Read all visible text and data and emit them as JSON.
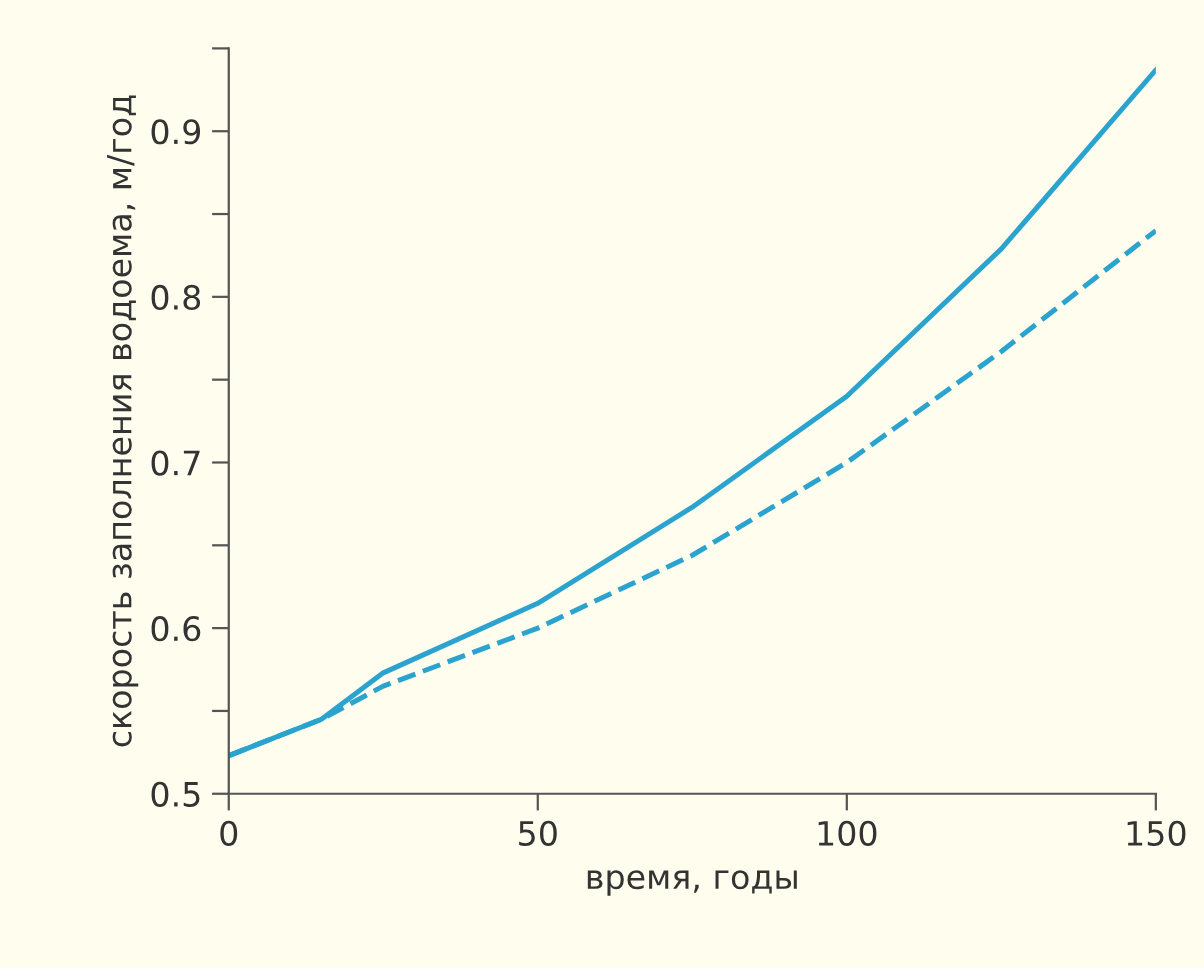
{
  "chart_data": {
    "type": "line",
    "xlabel": "время, годы",
    "ylabel": "скорость заполнения водоема, м/год",
    "xlim": [
      0,
      150
    ],
    "ylim": [
      0.5,
      0.95
    ],
    "xticks": [
      0,
      50,
      100,
      150
    ],
    "yticks": [
      0.5,
      {
        "value": 0.55,
        "label": null
      },
      0.6,
      {
        "value": 0.65,
        "label": null
      },
      0.7,
      {
        "value": 0.75,
        "label": null
      },
      0.8,
      {
        "value": 0.85,
        "label": null
      },
      0.9,
      {
        "value": 0.95,
        "label": null
      }
    ],
    "grid": false,
    "legend": false,
    "series": [
      {
        "x": [
          0,
          15,
          25,
          50,
          75,
          100,
          125,
          150
        ],
        "values": [
          0.523,
          0.545,
          0.573,
          0.615,
          0.673,
          0.74,
          0.829,
          0.937
        ],
        "color": "#2ba3cf",
        "line_style": "solid"
      },
      {
        "x": [
          0,
          15,
          25,
          50,
          75,
          100,
          125,
          150
        ],
        "values": [
          0.523,
          0.545,
          0.565,
          0.6,
          0.644,
          0.7,
          0.767,
          0.84
        ],
        "color": "#2ba3cf",
        "line_style": "dashed"
      }
    ]
  }
}
